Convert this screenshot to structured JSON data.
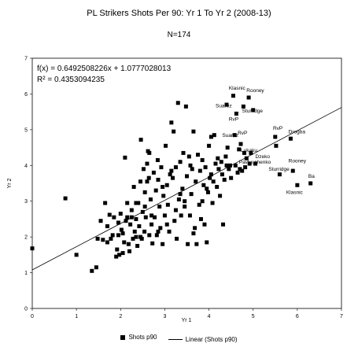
{
  "chart_data": {
    "type": "scatter",
    "title": "PL Strikers Shots Per 90: Yr 1 To Yr 2 (2008-13)",
    "subtitle": "N=174",
    "xlabel": "Yr 1",
    "ylabel": "Yr 2",
    "xlim": [
      0,
      7
    ],
    "ylim": [
      0,
      7
    ],
    "xticks": [
      0,
      1,
      2,
      3,
      4,
      5,
      6,
      7
    ],
    "yticks": [
      0,
      1,
      2,
      3,
      4,
      5,
      6,
      7
    ],
    "grid": false,
    "legend_position": "bottom",
    "equation": "f(x) = 0.6492508226x + 1.0777028013",
    "r_squared": "R² = 0.4353094235",
    "trendline": {
      "slope": 0.6492508226,
      "intercept": 1.0777028013
    },
    "series": [
      {
        "name": "Shots p90",
        "type": "scatter",
        "points": [
          [
            0.0,
            1.68
          ],
          [
            0.75,
            3.08
          ],
          [
            1.0,
            1.5
          ],
          [
            1.35,
            1.05
          ],
          [
            1.45,
            1.15
          ],
          [
            1.48,
            1.95
          ],
          [
            1.55,
            2.45
          ],
          [
            1.6,
            1.92
          ],
          [
            1.65,
            2.95
          ],
          [
            1.7,
            1.85
          ],
          [
            1.75,
            2.62
          ],
          [
            1.78,
            1.95
          ],
          [
            1.82,
            2.05
          ],
          [
            1.85,
            2.55
          ],
          [
            1.9,
            1.45
          ],
          [
            1.92,
            1.65
          ],
          [
            1.95,
            2.05
          ],
          [
            1.97,
            1.5
          ],
          [
            2.0,
            2.65
          ],
          [
            2.02,
            2.2
          ],
          [
            2.05,
            2.1
          ],
          [
            2.08,
            1.85
          ],
          [
            2.1,
            4.22
          ],
          [
            2.12,
            2.45
          ],
          [
            2.15,
            2.95
          ],
          [
            2.18,
            1.8
          ],
          [
            2.2,
            1.6
          ],
          [
            2.22,
            2.35
          ],
          [
            2.25,
            2.75
          ],
          [
            2.28,
            1.95
          ],
          [
            2.3,
            3.4
          ],
          [
            2.32,
            2.15
          ],
          [
            2.35,
            2.5
          ],
          [
            2.38,
            1.75
          ],
          [
            2.4,
            2.95
          ],
          [
            2.42,
            2.3
          ],
          [
            2.45,
            3.55
          ],
          [
            2.46,
            4.72
          ],
          [
            2.48,
            1.95
          ],
          [
            2.5,
            2.7
          ],
          [
            2.52,
            3.9
          ],
          [
            2.54,
            2.15
          ],
          [
            2.55,
            3.25
          ],
          [
            2.57,
            2.55
          ],
          [
            2.6,
            4.05
          ],
          [
            2.62,
            4.4
          ],
          [
            2.64,
            3.65
          ],
          [
            2.65,
            2.05
          ],
          [
            2.68,
            3.05
          ],
          [
            2.7,
            2.35
          ],
          [
            2.72,
            1.82
          ],
          [
            2.75,
            3.8
          ],
          [
            2.77,
            2.55
          ],
          [
            2.8,
            3.3
          ],
          [
            2.82,
            2.05
          ],
          [
            2.84,
            4.15
          ],
          [
            2.85,
            3.6
          ],
          [
            2.88,
            2.85
          ],
          [
            2.9,
            2.25
          ],
          [
            2.92,
            3.95
          ],
          [
            2.95,
            1.8
          ],
          [
            2.97,
            3.15
          ],
          [
            3.0,
            2.6
          ],
          [
            3.02,
            4.55
          ],
          [
            3.05,
            3.45
          ],
          [
            3.07,
            2.9
          ],
          [
            3.1,
            2.15
          ],
          [
            3.12,
            3.75
          ],
          [
            3.15,
            5.2
          ],
          [
            3.18,
            3.65
          ],
          [
            3.2,
            4.95
          ],
          [
            3.22,
            2.45
          ],
          [
            3.25,
            3.95
          ],
          [
            3.27,
            1.95
          ],
          [
            3.3,
            5.75
          ],
          [
            3.32,
            3.05
          ],
          [
            3.35,
            4.1
          ],
          [
            3.37,
            2.6
          ],
          [
            3.4,
            3.35
          ],
          [
            3.42,
            4.35
          ],
          [
            3.45,
            2.85
          ],
          [
            3.48,
            5.65
          ],
          [
            3.5,
            3.7
          ],
          [
            3.52,
            1.8
          ],
          [
            3.55,
            4.25
          ],
          [
            3.57,
            2.6
          ],
          [
            3.6,
            3.2
          ],
          [
            3.62,
            3.9
          ],
          [
            3.65,
            4.95
          ],
          [
            3.68,
            2.25
          ],
          [
            3.7,
            3.55
          ],
          [
            3.72,
            1.8
          ],
          [
            3.75,
            4.3
          ],
          [
            3.78,
            2.9
          ],
          [
            3.8,
            3.85
          ],
          [
            3.82,
            2.5
          ],
          [
            3.85,
            4.15
          ],
          [
            3.88,
            3.45
          ],
          [
            3.9,
            2.35
          ],
          [
            3.92,
            3.95
          ],
          [
            3.95,
            1.85
          ],
          [
            3.98,
            3.25
          ],
          [
            4.0,
            4.55
          ],
          [
            4.02,
            3.65
          ],
          [
            4.05,
            4.8
          ],
          [
            4.08,
            2.95
          ],
          [
            4.1,
            3.55
          ],
          [
            4.12,
            4.85
          ],
          [
            4.15,
            4.05
          ],
          [
            4.18,
            3.4
          ],
          [
            4.2,
            4.2
          ],
          [
            4.22,
            3.9
          ],
          [
            4.25,
            3.15
          ],
          [
            4.28,
            4.1
          ],
          [
            4.3,
            3.75
          ],
          [
            4.32,
            2.35
          ],
          [
            4.35,
            3.6
          ],
          [
            4.38,
            4.25
          ],
          [
            4.4,
            5.7
          ],
          [
            4.42,
            4.5
          ],
          [
            4.45,
            3.9
          ],
          [
            4.48,
            4.0
          ],
          [
            4.5,
            3.65
          ],
          [
            4.55,
            5.95
          ],
          [
            4.58,
            4.85
          ],
          [
            4.6,
            4.0
          ],
          [
            4.62,
            5.45
          ],
          [
            4.65,
            3.8
          ],
          [
            4.68,
            4.45
          ],
          [
            4.7,
            3.9
          ],
          [
            4.72,
            4.6
          ],
          [
            4.75,
            3.85
          ],
          [
            4.78,
            5.65
          ],
          [
            4.8,
            4.35
          ],
          [
            4.82,
            3.95
          ],
          [
            4.85,
            4.2
          ],
          [
            4.9,
            5.9
          ],
          [
            4.92,
            4.05
          ],
          [
            5.05,
            4.05
          ],
          [
            5.5,
            4.8
          ],
          [
            5.52,
            4.55
          ],
          [
            5.6,
            3.75
          ],
          [
            5.85,
            4.75
          ],
          [
            5.9,
            3.85
          ],
          [
            6.0,
            3.45
          ],
          [
            6.3,
            3.5
          ],
          [
            4.95,
            4.35
          ],
          [
            5.0,
            5.55
          ],
          [
            3.58,
            4.0
          ],
          [
            3.35,
            3.2
          ],
          [
            2.95,
            3.4
          ],
          [
            2.65,
            4.35
          ],
          [
            2.35,
            2.0
          ],
          [
            2.25,
            2.55
          ],
          [
            2.05,
            1.55
          ],
          [
            1.7,
            2.3
          ],
          [
            2.55,
            2.85
          ],
          [
            2.7,
            2.6
          ],
          [
            3.05,
            2.35
          ],
          [
            3.25,
            2.75
          ],
          [
            3.65,
            2.1
          ],
          [
            2.85,
            2.15
          ],
          [
            2.45,
            2.0
          ],
          [
            3.45,
            3.0
          ],
          [
            3.85,
            3.0
          ],
          [
            4.05,
            3.75
          ],
          [
            4.4,
            4.0
          ],
          [
            2.15,
            2.55
          ],
          [
            1.95,
            2.4
          ],
          [
            2.35,
            2.95
          ],
          [
            3.15,
            3.85
          ],
          [
            2.6,
            3.55
          ],
          [
            3.95,
            3.35
          ]
        ]
      },
      {
        "name": "Linear (Shots p90)",
        "type": "line"
      }
    ],
    "annotations": [
      {
        "text": "Klasnic",
        "x": 4.45,
        "y": 6.12
      },
      {
        "text": "Rooney",
        "x": 4.85,
        "y": 6.05
      },
      {
        "text": "Suarez",
        "x": 4.15,
        "y": 5.62
      },
      {
        "text": "Sturridge",
        "x": 4.75,
        "y": 5.48
      },
      {
        "text": "RvP",
        "x": 4.45,
        "y": 5.25
      },
      {
        "text": "Suarez",
        "x": 4.3,
        "y": 4.8
      },
      {
        "text": "RvP",
        "x": 4.65,
        "y": 4.87
      },
      {
        "text": "Lukaku",
        "x": 4.72,
        "y": 4.38
      },
      {
        "text": "Pavlyuchenko",
        "x": 4.68,
        "y": 4.05
      },
      {
        "text": "Dzeko",
        "x": 5.05,
        "y": 4.2
      },
      {
        "text": "RvP",
        "x": 5.45,
        "y": 5.0
      },
      {
        "text": "Drogba",
        "x": 5.8,
        "y": 4.9
      },
      {
        "text": "Rooney",
        "x": 5.8,
        "y": 4.08
      },
      {
        "text": "Sturridge",
        "x": 5.35,
        "y": 3.85
      },
      {
        "text": "Ba",
        "x": 6.25,
        "y": 3.65
      },
      {
        "text": "Klasnic",
        "x": 5.75,
        "y": 3.2
      }
    ]
  }
}
